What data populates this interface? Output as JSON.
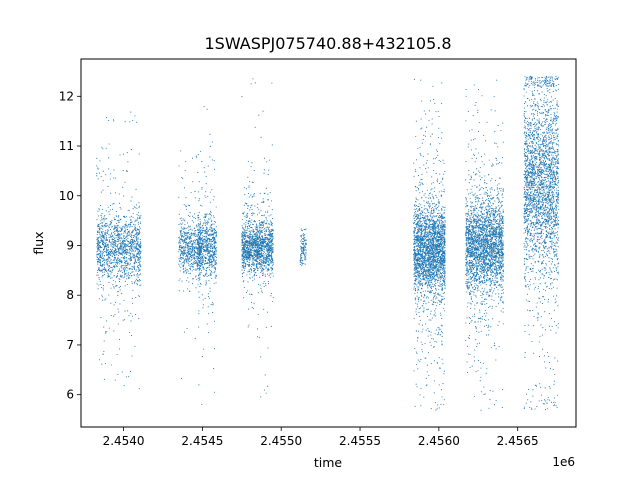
{
  "chart_data": {
    "type": "scatter",
    "title": "1SWASPJ075740.88+432105.8",
    "xlabel": "time",
    "ylabel": "flux",
    "x_offset_label": "1e6",
    "x_scale": 1000000,
    "xlim": [
      2.45373,
      2.45687
    ],
    "ylim": [
      5.35,
      12.75
    ],
    "x_ticks": [
      2.454,
      2.4545,
      2.455,
      2.4555,
      2.456,
      2.4565
    ],
    "x_tick_labels": [
      "2.4540",
      "2.4545",
      "2.4550",
      "2.4555",
      "2.4560",
      "2.4565"
    ],
    "y_ticks": [
      6,
      7,
      8,
      9,
      10,
      11,
      12
    ],
    "y_tick_labels": [
      "6",
      "7",
      "8",
      "9",
      "10",
      "11",
      "12"
    ],
    "grid": false,
    "marker_color": "#1f77b4",
    "series": [
      {
        "x": [
          2.45383,
          2.45383,
          2.45383,
          2.45383,
          2.45385
        ],
        "y": [
          10.75,
          10.6,
          10.45,
          10.4,
          10.7
        ],
        "clusters": [
          {
            "x_center": 2.45397,
            "x_spread": 0.00014,
            "y_center": 8.95,
            "y_spread": 0.35,
            "y_min": 6.1,
            "y_max": 11.7,
            "n": 1400
          },
          {
            "x_center": 2.45442,
            "x_spread": 7e-05,
            "y_center": 8.95,
            "y_spread": 0.25,
            "y_min": 5.95,
            "y_max": 11.3,
            "n": 600
          },
          {
            "x_center": 2.45453,
            "x_spread": 6e-05,
            "y_center": 8.95,
            "y_spread": 0.3,
            "y_min": 5.65,
            "y_max": 12.05,
            "n": 700
          },
          {
            "x_center": 2.45485,
            "x_spread": 0.0001,
            "y_center": 8.95,
            "y_spread": 0.25,
            "y_min": 5.75,
            "y_max": 12.4,
            "n": 1500
          },
          {
            "x_center": 2.45514,
            "x_spread": 2e-05,
            "y_center": 8.95,
            "y_spread": 0.15,
            "y_min": 8.6,
            "y_max": 9.35,
            "n": 120
          },
          {
            "x_center": 2.45594,
            "x_spread": 0.0001,
            "y_center": 8.9,
            "y_spread": 0.45,
            "y_min": 5.65,
            "y_max": 12.35,
            "n": 2600
          },
          {
            "x_center": 2.45629,
            "x_spread": 0.00012,
            "y_center": 9.0,
            "y_spread": 0.45,
            "y_min": 5.65,
            "y_max": 12.35,
            "n": 2600
          },
          {
            "x_center": 2.45665,
            "x_spread": 0.00011,
            "y_center": 10.2,
            "y_spread": 0.9,
            "y_min": 5.7,
            "y_max": 12.4,
            "n": 2600
          }
        ]
      }
    ]
  }
}
